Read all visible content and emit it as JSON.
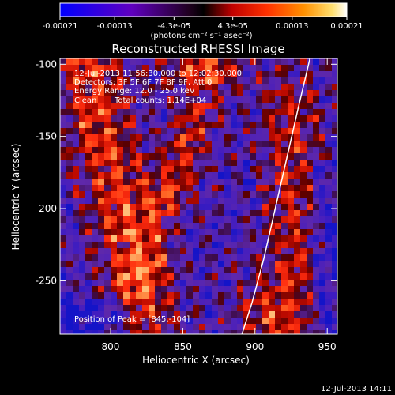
{
  "colorbar": {
    "ticks": [
      "-0.00021",
      "-0.00013",
      "-4.3e-05",
      "4.3e-05",
      "0.00013",
      "0.00021"
    ],
    "tick_values": [
      -0.00021,
      -0.00013,
      -4.3e-05,
      4.3e-05,
      0.00013,
      0.00021
    ],
    "range": [
      -0.00021,
      0.00021
    ],
    "units": "(photons cm⁻² s⁻¹ asec⁻²)",
    "colors": [
      "#0000ff",
      "#5500c0",
      "#7a00b0",
      "#000000",
      "#b00000",
      "#ff2000",
      "#ff8000",
      "#ffd040",
      "#ffffff"
    ]
  },
  "chart_data": {
    "type": "heatmap",
    "title": "Reconstructed RHESSI Image",
    "xlabel": "Heliocentric X (arcsec)",
    "ylabel": "Heliocentric Y (arcsec)",
    "xlim": [
      765,
      957
    ],
    "ylim": [
      -287,
      -96
    ],
    "xticks": [
      800,
      850,
      900,
      950
    ],
    "yticks": [
      -100,
      -150,
      -200,
      -250
    ],
    "annotations": {
      "time": "12-Jul-2013 11:56:30.000 to 12:02:30.000",
      "detectors": "Detectors: 3F 5F 6F 7F 8F 9F, Att 0",
      "energy": "Energy Range: 12.0 - 25.0 keV",
      "clean": "Clean",
      "counts": "Total counts: 1.14E+04",
      "peak": "Position of Peak = [845,-104]"
    },
    "peak": [
      845,
      -104
    ],
    "limb_points": [
      [
        938,
        -96
      ],
      [
        930,
        -130
      ],
      [
        922,
        -165
      ],
      [
        914,
        -200
      ],
      [
        906,
        -235
      ],
      [
        898,
        -265
      ],
      [
        891,
        -287
      ]
    ]
  },
  "footer": {
    "timestamp": "12-Jul-2013 14:11"
  }
}
